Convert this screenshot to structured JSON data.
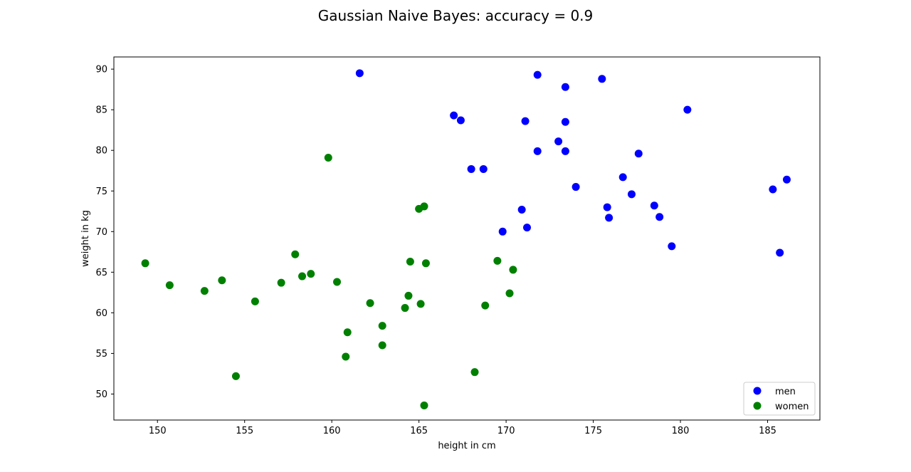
{
  "chart_data": {
    "type": "scatter",
    "title": "Gaussian Naive Bayes: accuracy = 0.9",
    "xlabel": "height in cm",
    "ylabel": "weight in kg",
    "xlim": [
      147.5,
      188.0
    ],
    "ylim": [
      46.8,
      91.5
    ],
    "xticks": [
      150,
      155,
      160,
      165,
      170,
      175,
      180,
      185
    ],
    "yticks": [
      50,
      55,
      60,
      65,
      70,
      75,
      80,
      85,
      90
    ],
    "grid": false,
    "legend_position": "lower-right",
    "series": [
      {
        "name": "men",
        "color": "#0000ff",
        "points": [
          [
            161.6,
            89.5
          ],
          [
            171.8,
            89.3
          ],
          [
            175.5,
            88.8
          ],
          [
            173.4,
            87.8
          ],
          [
            180.4,
            85.0
          ],
          [
            167.0,
            84.3
          ],
          [
            167.4,
            83.7
          ],
          [
            171.1,
            83.6
          ],
          [
            173.4,
            83.5
          ],
          [
            173.0,
            81.1
          ],
          [
            171.8,
            79.9
          ],
          [
            173.4,
            79.9
          ],
          [
            177.6,
            79.6
          ],
          [
            168.0,
            77.7
          ],
          [
            168.7,
            77.7
          ],
          [
            176.7,
            76.7
          ],
          [
            186.1,
            76.4
          ],
          [
            174.0,
            75.5
          ],
          [
            185.3,
            75.2
          ],
          [
            177.2,
            74.6
          ],
          [
            178.5,
            73.2
          ],
          [
            175.8,
            73.0
          ],
          [
            170.9,
            72.7
          ],
          [
            175.9,
            71.7
          ],
          [
            178.8,
            71.8
          ],
          [
            171.2,
            70.5
          ],
          [
            169.8,
            70.0
          ],
          [
            179.5,
            68.2
          ],
          [
            185.7,
            67.4
          ]
        ]
      },
      {
        "name": "women",
        "color": "#008000",
        "points": [
          [
            159.8,
            79.1
          ],
          [
            165.3,
            73.1
          ],
          [
            165.0,
            72.8
          ],
          [
            157.9,
            67.2
          ],
          [
            169.5,
            66.4
          ],
          [
            164.5,
            66.3
          ],
          [
            149.3,
            66.1
          ],
          [
            165.4,
            66.1
          ],
          [
            170.4,
            65.3
          ],
          [
            158.8,
            64.8
          ],
          [
            158.3,
            64.5
          ],
          [
            153.7,
            64.0
          ],
          [
            160.3,
            63.8
          ],
          [
            157.1,
            63.7
          ],
          [
            150.7,
            63.4
          ],
          [
            152.7,
            62.7
          ],
          [
            170.2,
            62.4
          ],
          [
            164.4,
            62.1
          ],
          [
            155.6,
            61.4
          ],
          [
            162.2,
            61.2
          ],
          [
            165.1,
            61.1
          ],
          [
            168.8,
            60.9
          ],
          [
            164.2,
            60.6
          ],
          [
            162.9,
            58.4
          ],
          [
            160.9,
            57.6
          ],
          [
            162.9,
            56.0
          ],
          [
            160.8,
            54.6
          ],
          [
            168.2,
            52.7
          ],
          [
            154.5,
            52.2
          ],
          [
            165.3,
            48.6
          ]
        ]
      }
    ]
  }
}
